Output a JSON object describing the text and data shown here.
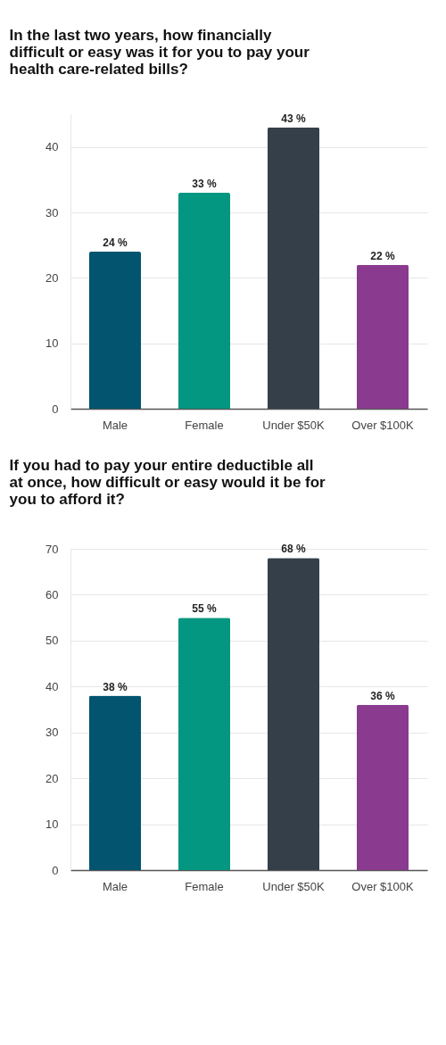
{
  "chart_data": [
    {
      "type": "bar",
      "title": "In the last two years, how financially difficult or easy was it for you to pay your health care-related bills?",
      "categories": [
        "Male",
        "Female",
        "Under $50K",
        "Over $100K"
      ],
      "values": [
        24,
        33,
        43,
        22
      ],
      "colors": [
        "#02546f",
        "#039680",
        "#343f49",
        "#8a3a8f"
      ],
      "value_labels": [
        "24 %",
        "33 %",
        "43 %",
        "22 %"
      ],
      "ylim": [
        0,
        45
      ],
      "yticks": [
        0,
        10,
        20,
        30,
        40
      ],
      "grid": "y"
    },
    {
      "type": "bar",
      "title": "If you had to pay your entire deductible all at once, how difficult or easy would it be for you to afford it?",
      "categories": [
        "Male",
        "Female",
        "Under $50K",
        "Over $100K"
      ],
      "values": [
        38,
        55,
        68,
        36
      ],
      "colors": [
        "#02546f",
        "#039680",
        "#343f49",
        "#8a3a8f"
      ],
      "value_labels": [
        "38 %",
        "55 %",
        "68 %",
        "36 %"
      ],
      "ylim": [
        0,
        70
      ],
      "yticks": [
        0,
        10,
        20,
        30,
        40,
        50,
        60,
        70
      ],
      "grid": "y"
    }
  ]
}
